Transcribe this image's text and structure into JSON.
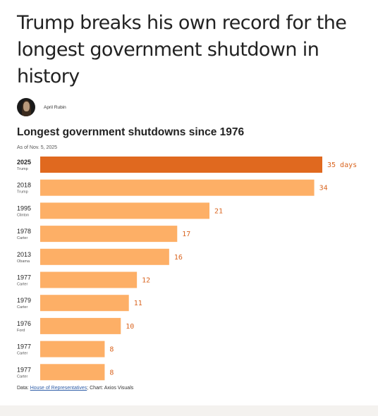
{
  "article": {
    "headline": "Trump breaks his own record for the longest government shutdown in history",
    "author": "April Rubin"
  },
  "chart_data": {
    "type": "bar",
    "orientation": "horizontal",
    "title": "Longest government shutdowns since 1976",
    "subtitle": "As of Nov. 5, 2025",
    "categories": [
      "2025",
      "2018",
      "1995",
      "1978",
      "2013",
      "1977",
      "1979",
      "1976",
      "1977",
      "1977"
    ],
    "presidents": [
      "Trump",
      "Trump",
      "Clinton",
      "Carter",
      "Obama",
      "Carter",
      "Carter",
      "Ford",
      "Carter",
      "Carter"
    ],
    "values": [
      35,
      34,
      21,
      17,
      16,
      12,
      11,
      10,
      8,
      8
    ],
    "value_labels": [
      "35 days",
      "34",
      "21",
      "17",
      "16",
      "12",
      "11",
      "10",
      "8",
      "8"
    ],
    "highlight_index": 0,
    "xlim": [
      0,
      35
    ],
    "colors": {
      "highlight": "#e0691f",
      "bar": "#fdaf66",
      "label": "#d9641f"
    }
  },
  "footer": {
    "data_prefix": "Data: ",
    "source_link": "House of Representatives",
    "suffix": "; Chart: Axios Visuals"
  }
}
